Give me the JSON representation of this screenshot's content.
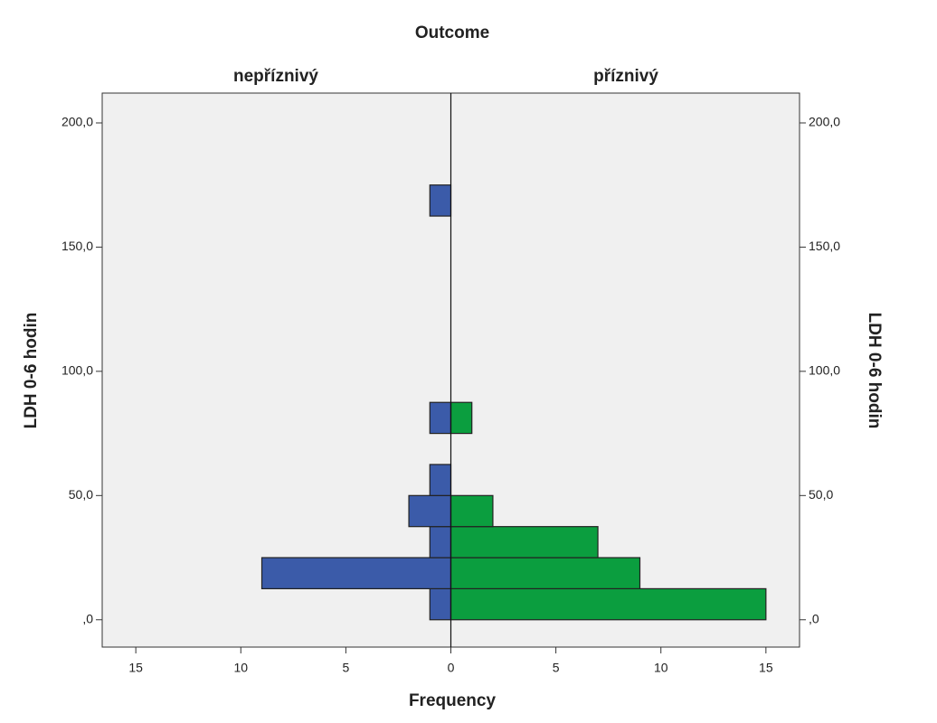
{
  "chart_data": {
    "type": "histogram",
    "title": "Outcome",
    "xlabel": "Frequency",
    "ylabel": "LDH 0-6 hodin",
    "bins": [
      0,
      12.5,
      25,
      37.5,
      50,
      62.5,
      75,
      87.5,
      100,
      112.5,
      125,
      137.5,
      150,
      162.5,
      175
    ],
    "series": [
      {
        "name": "nepříznivý",
        "color": "#3b5ba9",
        "values": [
          1,
          9,
          1,
          2,
          1,
          0,
          1,
          0,
          0,
          0,
          0,
          0,
          0,
          1
        ]
      },
      {
        "name": "příznivý",
        "color": "#0b9e3f",
        "values": [
          15,
          9,
          7,
          2,
          0,
          0,
          1,
          0,
          0,
          0,
          0,
          0,
          0,
          0
        ]
      }
    ],
    "xlim": [
      0,
      16.6
    ],
    "xticks": [
      0,
      5,
      10,
      15
    ],
    "ylim": [
      -11,
      212
    ],
    "yticks": [
      {
        "value": 0,
        "label": ",0"
      },
      {
        "value": 50,
        "label": "50,0"
      },
      {
        "value": 100,
        "label": "100,0"
      },
      {
        "value": 150,
        "label": "150,0"
      },
      {
        "value": 200,
        "label": "200,0"
      }
    ]
  }
}
